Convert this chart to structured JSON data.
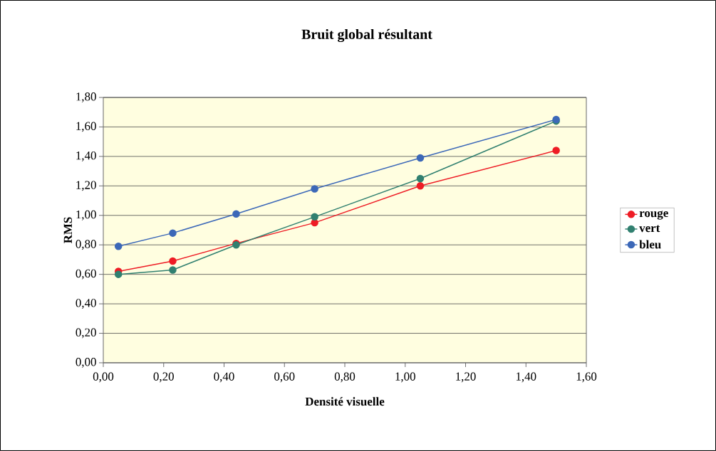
{
  "chart_data": {
    "type": "line",
    "title": "Bruit global résultant",
    "xlabel": "Densité visuelle",
    "ylabel": "RMS",
    "x": [
      0.05,
      0.23,
      0.44,
      0.7,
      1.05,
      1.5
    ],
    "series": [
      {
        "name": "rouge",
        "color": "#ee1c25",
        "values": [
          0.62,
          0.69,
          0.81,
          0.95,
          1.2,
          1.44
        ]
      },
      {
        "name": "vert",
        "color": "#318070",
        "values": [
          0.6,
          0.63,
          0.8,
          0.99,
          1.25,
          1.64
        ]
      },
      {
        "name": "bleu",
        "color": "#3c68b8",
        "values": [
          0.79,
          0.88,
          1.01,
          1.18,
          1.39,
          1.65
        ]
      }
    ],
    "xlim": [
      0,
      1.6
    ],
    "ylim": [
      0,
      1.8
    ],
    "xticks": [
      {
        "value": 0,
        "label": "0,00"
      },
      {
        "value": 0.2,
        "label": "0,20"
      },
      {
        "value": 0.4,
        "label": "0,40"
      },
      {
        "value": 0.6,
        "label": "0,60"
      },
      {
        "value": 0.8,
        "label": "0,80"
      },
      {
        "value": 1.0,
        "label": "1,00"
      },
      {
        "value": 1.2,
        "label": "1,20"
      },
      {
        "value": 1.4,
        "label": "1,40"
      },
      {
        "value": 1.6,
        "label": "1,60"
      }
    ],
    "yticks": [
      {
        "value": 0,
        "label": "0,00"
      },
      {
        "value": 0.2,
        "label": "0,20"
      },
      {
        "value": 0.4,
        "label": "0,40"
      },
      {
        "value": 0.6,
        "label": "0,60"
      },
      {
        "value": 0.8,
        "label": "0,80"
      },
      {
        "value": 1.0,
        "label": "1,00"
      },
      {
        "value": 1.2,
        "label": "1,20"
      },
      {
        "value": 1.4,
        "label": "1,40"
      },
      {
        "value": 1.6,
        "label": "1,60"
      },
      {
        "value": 1.8,
        "label": "1,80"
      }
    ],
    "grid": "y",
    "legend": "right",
    "marker": "circle",
    "line_style": "solid"
  }
}
